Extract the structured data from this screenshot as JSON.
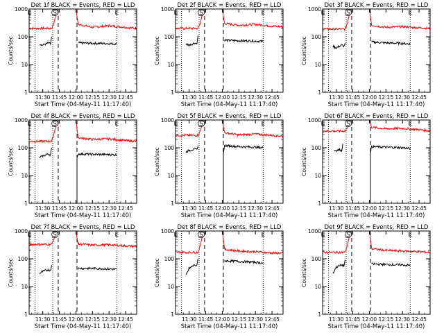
{
  "figure": {
    "xlabel": "Start Time (04-May-11 11:17:40)",
    "ylabel": "Counts/sec",
    "x_ticks": [
      "11:30",
      "11:45",
      "12:00",
      "12:15",
      "12:30",
      "12:45"
    ],
    "y_ticks": [
      "1",
      "10",
      "100",
      "1000"
    ]
  },
  "colors": {
    "events": "#000000",
    "lld": "#ff0000",
    "axes": "#000000"
  },
  "chart_data": [
    {
      "type": "line",
      "title": "Det 1f BLACK = Events, RED = LLD",
      "xlim": [
        "11:17:40",
        "12:55"
      ],
      "ylim": [
        1,
        1000
      ],
      "y_scale": "log",
      "markers": [
        {
          "label": "E",
          "x": "11:18"
        },
        {
          "label": "S",
          "x": "11:41"
        },
        {
          "label": "E",
          "x": "12:37"
        }
      ],
      "dotted_lines_x": [
        "11:23",
        "11:39",
        "12:37"
      ],
      "dashed_lines_x": [
        "11:44",
        "12:01"
      ],
      "series": [
        {
          "name": "LLD",
          "color": "#ff0000",
          "segments": [
            {
              "x": [
                "11:17:40",
                "11:38",
                "11:40",
                "11:43"
              ],
              "y": [
                200,
                200,
                300,
                1000
              ]
            },
            {
              "x": [
                "12:00",
                "12:02",
                "12:15",
                "12:30",
                "12:45",
                "12:55"
              ],
              "y": [
                1000,
                280,
                220,
                250,
                220,
                200
              ]
            }
          ]
        },
        {
          "name": "Events",
          "color": "#000000",
          "segments": [
            {
              "x": [
                "11:27",
                "11:30",
                "11:35",
                "11:37",
                "11:38"
              ],
              "y": [
                55,
                50,
                60,
                55,
                100
              ]
            },
            {
              "x": [
                "12:02",
                "12:15",
                "12:30",
                "12:37"
              ],
              "y": [
                60,
                58,
                57,
                55
              ]
            }
          ]
        }
      ]
    },
    {
      "type": "line",
      "title": "Det 2f BLACK = Events, RED = LLD",
      "xlim": [
        "11:17:40",
        "12:55"
      ],
      "ylim": [
        1,
        1000
      ],
      "y_scale": "log",
      "markers": [
        {
          "label": "E",
          "x": "11:18"
        },
        {
          "label": "S",
          "x": "11:41"
        },
        {
          "label": "E",
          "x": "12:37"
        }
      ],
      "dotted_lines_x": [
        "11:23",
        "11:39",
        "12:37"
      ],
      "dashed_lines_x": [
        "11:44",
        "12:01"
      ],
      "series": [
        {
          "name": "LLD",
          "color": "#ff0000",
          "segments": [
            {
              "x": [
                "11:17:40",
                "11:38",
                "11:40",
                "11:43"
              ],
              "y": [
                200,
                200,
                300,
                1000
              ]
            },
            {
              "x": [
                "12:00",
                "12:02",
                "12:15",
                "12:30",
                "12:45",
                "12:55"
              ],
              "y": [
                1000,
                300,
                260,
                280,
                240,
                230
              ]
            }
          ]
        },
        {
          "name": "Events",
          "color": "#000000",
          "segments": [
            {
              "x": [
                "11:27",
                "11:30",
                "11:35",
                "11:37",
                "11:38"
              ],
              "y": [
                55,
                50,
                60,
                55,
                110
              ]
            },
            {
              "x": [
                "12:02",
                "12:15",
                "12:30",
                "12:37"
              ],
              "y": [
                75,
                72,
                70,
                68
              ]
            }
          ]
        }
      ]
    },
    {
      "type": "line",
      "title": "Det 3f BLACK = Events, RED = LLD",
      "xlim": [
        "11:17:40",
        "12:55"
      ],
      "ylim": [
        1,
        1000
      ],
      "y_scale": "log",
      "markers": [
        {
          "label": "E",
          "x": "11:18"
        },
        {
          "label": "S",
          "x": "11:41"
        },
        {
          "label": "E",
          "x": "12:37"
        }
      ],
      "dotted_lines_x": [
        "11:23",
        "11:39",
        "12:37"
      ],
      "dashed_lines_x": [
        "11:44",
        "12:01"
      ],
      "series": [
        {
          "name": "LLD",
          "color": "#ff0000",
          "segments": [
            {
              "x": [
                "11:17:40",
                "11:38",
                "11:40",
                "11:43"
              ],
              "y": [
                190,
                190,
                300,
                1000
              ]
            },
            {
              "x": [
                "12:00",
                "12:02",
                "12:15",
                "12:30",
                "12:45",
                "12:55"
              ],
              "y": [
                1000,
                260,
                220,
                230,
                210,
                200
              ]
            }
          ]
        },
        {
          "name": "Events",
          "color": "#000000",
          "segments": [
            {
              "x": [
                "11:27",
                "11:30",
                "11:35",
                "11:37",
                "11:38"
              ],
              "y": [
                45,
                40,
                50,
                45,
                60
              ]
            },
            {
              "x": [
                "12:02",
                "12:15",
                "12:30",
                "12:37"
              ],
              "y": [
                65,
                60,
                58,
                55
              ]
            }
          ]
        }
      ]
    },
    {
      "type": "line",
      "title": "Det 4f BLACK = Events, RED = LLD",
      "xlim": [
        "11:17:40",
        "12:55"
      ],
      "ylim": [
        1,
        1000
      ],
      "y_scale": "log",
      "markers": [
        {
          "label": "E",
          "x": "11:18"
        },
        {
          "label": "S",
          "x": "11:41"
        },
        {
          "label": "E",
          "x": "12:37"
        }
      ],
      "dotted_lines_x": [
        "11:23",
        "11:39",
        "12:37"
      ],
      "dashed_lines_x": [
        "11:44",
        "12:01"
      ],
      "series": [
        {
          "name": "LLD",
          "color": "#ff0000",
          "segments": [
            {
              "x": [
                "11:17:40",
                "11:38",
                "11:40",
                "11:43"
              ],
              "y": [
                170,
                170,
                300,
                1000
              ]
            },
            {
              "x": [
                "12:00",
                "12:02",
                "12:15",
                "12:30",
                "12:45",
                "12:55"
              ],
              "y": [
                1000,
                230,
                200,
                210,
                180,
                170
              ]
            }
          ]
        },
        {
          "name": "Events",
          "color": "#000000",
          "segments": [
            {
              "x": [
                "11:27",
                "11:30",
                "11:35",
                "11:37",
                "11:38"
              ],
              "y": [
                45,
                50,
                60,
                55,
                100
              ]
            },
            {
              "x": [
                "12:01",
                "12:01",
                "12:02",
                "12:15",
                "12:30",
                "12:37"
              ],
              "y": [
                1,
                40,
                60,
                58,
                57,
                55
              ]
            }
          ]
        }
      ]
    },
    {
      "type": "line",
      "title": "Det 5f BLACK = Events, RED = LLD",
      "xlim": [
        "11:17:40",
        "12:55"
      ],
      "ylim": [
        1,
        1000
      ],
      "y_scale": "log",
      "markers": [
        {
          "label": "E",
          "x": "11:18"
        },
        {
          "label": "S",
          "x": "11:41"
        },
        {
          "label": "E",
          "x": "12:37"
        }
      ],
      "dotted_lines_x": [
        "11:23",
        "11:39",
        "12:37"
      ],
      "dashed_lines_x": [
        "11:44",
        "12:01"
      ],
      "series": [
        {
          "name": "LLD",
          "color": "#ff0000",
          "segments": [
            {
              "x": [
                "11:17:40",
                "11:38",
                "11:40",
                "11:43"
              ],
              "y": [
                280,
                280,
                400,
                1000
              ]
            },
            {
              "x": [
                "12:00",
                "12:02",
                "12:15",
                "12:30",
                "12:45",
                "12:55"
              ],
              "y": [
                1000,
                350,
                290,
                310,
                280,
                260
              ]
            }
          ]
        },
        {
          "name": "Events",
          "color": "#000000",
          "segments": [
            {
              "x": [
                "11:27",
                "11:30",
                "11:35",
                "11:37",
                "11:38"
              ],
              "y": [
                70,
                80,
                90,
                85,
                120
              ]
            },
            {
              "x": [
                "12:01",
                "12:01",
                "12:02",
                "12:15",
                "12:30",
                "12:37"
              ],
              "y": [
                1,
                60,
                120,
                110,
                105,
                100
              ]
            }
          ]
        }
      ]
    },
    {
      "type": "line",
      "title": "Det 6f BLACK = Events, RED = LLD",
      "xlim": [
        "11:17:40",
        "12:55"
      ],
      "ylim": [
        1,
        1000
      ],
      "y_scale": "log",
      "markers": [
        {
          "label": "E",
          "x": "11:18"
        },
        {
          "label": "S",
          "x": "11:41"
        },
        {
          "label": "E",
          "x": "12:37"
        }
      ],
      "dotted_lines_x": [
        "11:23",
        "11:39",
        "12:37"
      ],
      "dashed_lines_x": [
        "11:44",
        "12:01"
      ],
      "series": [
        {
          "name": "LLD",
          "color": "#ff0000",
          "segments": [
            {
              "x": [
                "11:17:40",
                "11:38",
                "11:40",
                "11:43"
              ],
              "y": [
                400,
                400,
                500,
                1000
              ]
            },
            {
              "x": [
                "12:00",
                "12:02",
                "12:15",
                "12:30",
                "12:45",
                "12:55"
              ],
              "y": [
                1000,
                550,
                480,
                500,
                450,
                400
              ]
            }
          ]
        },
        {
          "name": "Events",
          "color": "#000000",
          "segments": [
            {
              "x": [
                "11:28",
                "11:30",
                "11:33",
                "11:35",
                "11:36"
              ],
              "y": [
                80,
                80,
                85,
                80,
                140
              ]
            },
            {
              "x": [
                "12:01",
                "12:01",
                "12:02",
                "12:15",
                "12:30",
                "12:37"
              ],
              "y": [
                1,
                60,
                110,
                105,
                100,
                95
              ]
            }
          ]
        }
      ]
    },
    {
      "type": "line",
      "title": "Det 7f BLACK = Events, RED = LLD",
      "xlim": [
        "11:17:40",
        "12:55"
      ],
      "ylim": [
        1,
        1000
      ],
      "y_scale": "log",
      "markers": [
        {
          "label": "E",
          "x": "11:18"
        },
        {
          "label": "S",
          "x": "11:41"
        },
        {
          "label": "E",
          "x": "12:37"
        }
      ],
      "dotted_lines_x": [
        "11:23",
        "11:39",
        "12:37"
      ],
      "dashed_lines_x": [
        "11:44",
        "12:01"
      ],
      "series": [
        {
          "name": "LLD",
          "color": "#ff0000",
          "segments": [
            {
              "x": [
                "11:17:40",
                "11:38",
                "11:40",
                "11:43"
              ],
              "y": [
                330,
                330,
                500,
                1000
              ]
            },
            {
              "x": [
                "12:00",
                "12:02",
                "12:15",
                "12:30",
                "12:45",
                "12:55"
              ],
              "y": [
                1000,
                340,
                310,
                320,
                290,
                280
              ]
            }
          ]
        },
        {
          "name": "Events",
          "color": "#000000",
          "segments": [
            {
              "x": [
                "11:27",
                "11:30",
                "11:35",
                "11:37",
                "11:38"
              ],
              "y": [
                30,
                35,
                40,
                38,
                60
              ]
            },
            {
              "x": [
                "12:02",
                "12:15",
                "12:30",
                "12:37"
              ],
              "y": [
                45,
                45,
                43,
                42
              ]
            }
          ]
        }
      ]
    },
    {
      "type": "line",
      "title": "Det 8f BLACK = Events, RED = LLD",
      "xlim": [
        "11:17:40",
        "12:55"
      ],
      "ylim": [
        1,
        1000
      ],
      "y_scale": "log",
      "markers": [
        {
          "label": "E",
          "x": "11:18"
        },
        {
          "label": "S",
          "x": "11:41"
        },
        {
          "label": "E",
          "x": "12:37"
        }
      ],
      "dotted_lines_x": [
        "11:23",
        "11:39",
        "12:37"
      ],
      "dashed_lines_x": [
        "11:44",
        "12:01"
      ],
      "series": [
        {
          "name": "LLD",
          "color": "#ff0000",
          "segments": [
            {
              "x": [
                "11:17:40",
                "11:38",
                "11:40",
                "11:43"
              ],
              "y": [
                170,
                170,
                300,
                1000
              ]
            },
            {
              "x": [
                "12:00",
                "12:02",
                "12:15",
                "12:30",
                "12:45",
                "12:55"
              ],
              "y": [
                1000,
                220,
                190,
                180,
                160,
                160
              ]
            }
          ]
        },
        {
          "name": "Events",
          "color": "#000000",
          "segments": [
            {
              "x": [
                "11:27",
                "11:30",
                "11:35",
                "11:37",
                "11:38"
              ],
              "y": [
                25,
                45,
                60,
                55,
                100
              ]
            },
            {
              "x": [
                "12:02",
                "12:15",
                "12:30",
                "12:37"
              ],
              "y": [
                85,
                80,
                75,
                70
              ]
            }
          ]
        }
      ]
    },
    {
      "type": "line",
      "title": "Det 9f BLACK = Events, RED = LLD",
      "xlim": [
        "11:17:40",
        "12:55"
      ],
      "ylim": [
        1,
        1000
      ],
      "y_scale": "log",
      "markers": [
        {
          "label": "E",
          "x": "11:18"
        },
        {
          "label": "S",
          "x": "11:41"
        },
        {
          "label": "E",
          "x": "12:37"
        }
      ],
      "dotted_lines_x": [
        "11:23",
        "11:39",
        "12:37"
      ],
      "dashed_lines_x": [
        "11:44",
        "12:01"
      ],
      "series": [
        {
          "name": "LLD",
          "color": "#ff0000",
          "segments": [
            {
              "x": [
                "11:17:40",
                "11:38",
                "11:40",
                "11:43"
              ],
              "y": [
                170,
                170,
                300,
                1000
              ]
            },
            {
              "x": [
                "12:00",
                "12:02",
                "12:15",
                "12:30",
                "12:45",
                "12:55"
              ],
              "y": [
                1000,
                230,
                200,
                190,
                180,
                170
              ]
            }
          ]
        },
        {
          "name": "Events",
          "color": "#000000",
          "segments": [
            {
              "x": [
                "11:27",
                "11:30",
                "11:35",
                "11:37",
                "11:38"
              ],
              "y": [
                30,
                50,
                60,
                55,
                90
              ]
            },
            {
              "x": [
                "12:02",
                "12:15",
                "12:30",
                "12:37"
              ],
              "y": [
                65,
                62,
                60,
                58
              ]
            }
          ]
        }
      ]
    }
  ]
}
